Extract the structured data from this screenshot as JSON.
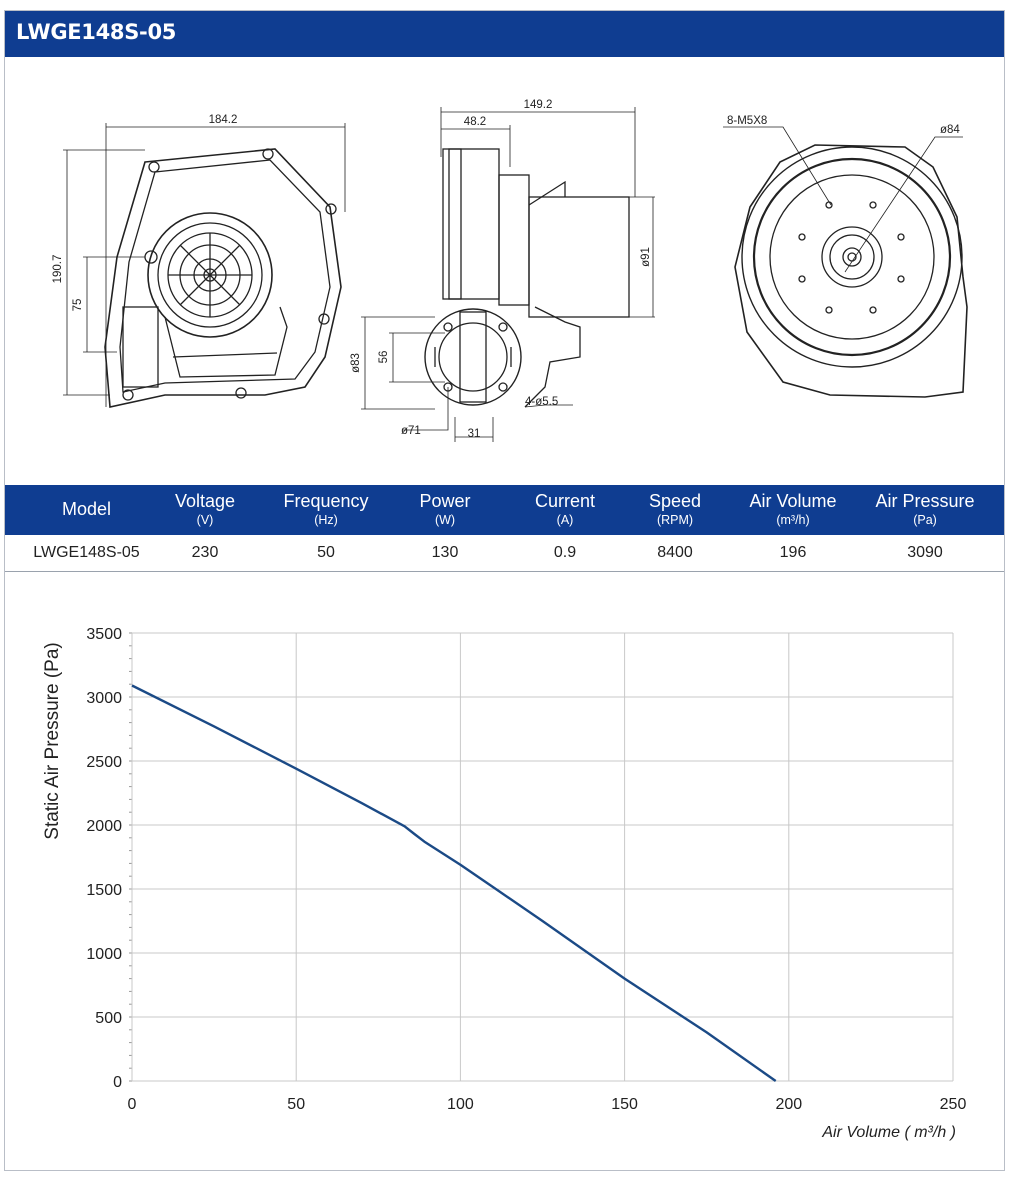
{
  "title": "LWGE148S-05",
  "drawings": {
    "front": {
      "width_dim": "184.2",
      "height_dim": "190.7",
      "inlet_dim": "75"
    },
    "side": {
      "total_dim": "149.2",
      "depth_dim": "48.2",
      "motor_dim": "ø91",
      "outlet_dim": "ø83",
      "outlet_height": "56",
      "flange_dim": "ø71",
      "flange_width": "31",
      "holes": "4-ø5.5"
    },
    "back": {
      "screws": "8-M5X8",
      "circle_dim": "ø84"
    }
  },
  "spec_table": {
    "columns": [
      {
        "label": "Model",
        "unit": ""
      },
      {
        "label": "Voltage",
        "unit": "(V)"
      },
      {
        "label": "Frequency",
        "unit": "(Hz)"
      },
      {
        "label": "Power",
        "unit": "(W)"
      },
      {
        "label": "Current",
        "unit": "(A)"
      },
      {
        "label": "Speed",
        "unit": "(RPM)"
      },
      {
        "label": "Air Volume",
        "unit": "(m³/h)"
      },
      {
        "label": "Air Pressure",
        "unit": "(Pa)"
      }
    ],
    "row": [
      "LWGE148S-05",
      "230",
      "50",
      "130",
      "0.9",
      "8400",
      "196",
      "3090"
    ]
  },
  "colors": {
    "brand": "#0f3d91",
    "curve": "#1b4a86",
    "grid": "#c8c8c8"
  },
  "chart_data": {
    "type": "line",
    "xlabel": "Air Volume ( m³/h )",
    "ylabel": "Static Air Pressure  (Pa)",
    "xlim": [
      0,
      250
    ],
    "ylim": [
      0,
      3500
    ],
    "x_ticks": [
      "0",
      "50",
      "100",
      "150",
      "200",
      "250"
    ],
    "y_ticks": [
      "0",
      "500",
      "1000",
      "1500",
      "2000",
      "2500",
      "3000",
      "3500"
    ],
    "grid": true,
    "series": [
      {
        "x": [
          0,
          25,
          50,
          70,
          83,
          86,
          89,
          100,
          125,
          150,
          175,
          196
        ],
        "y": [
          3090,
          2770,
          2440,
          2170,
          1990,
          1930,
          1870,
          1690,
          1250,
          800,
          380,
          0
        ]
      }
    ]
  }
}
